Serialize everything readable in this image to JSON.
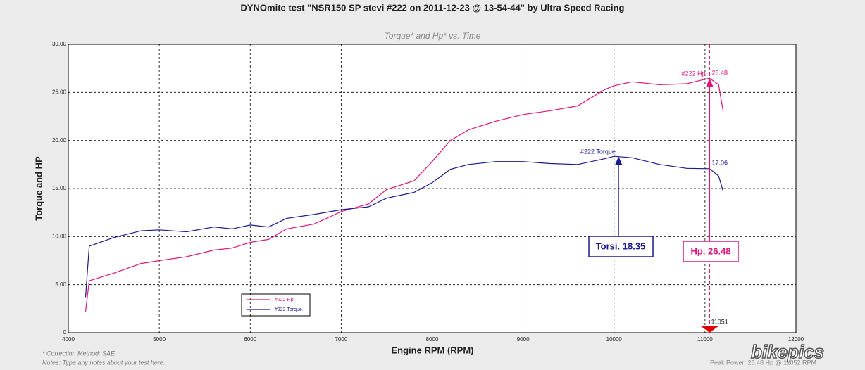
{
  "chart_data": {
    "type": "line",
    "title": "DYNOmite test \"NSR150 SP stevi #222 on 2011-12-23 @ 13-54-44\" by Ultra Speed Racing",
    "subtitle": "Torque* and Hp* vs. Time",
    "x_label": "Engine RPM (RPM)",
    "y_label": "Torque and HP",
    "xlim": [
      4000,
      12000
    ],
    "xticks": [
      4000,
      5000,
      6000,
      7000,
      8000,
      9000,
      10000,
      11000,
      12000
    ],
    "ylim": [
      0,
      30
    ],
    "yticks": [
      {
        "value": 0,
        "label": "0"
      },
      {
        "value": 5,
        "label": "5.00"
      },
      {
        "value": 10,
        "label": "10.00"
      },
      {
        "value": 15,
        "label": "15.00"
      },
      {
        "value": 20,
        "label": "20.00"
      },
      {
        "value": 25,
        "label": "25.00"
      },
      {
        "value": 30,
        "label": "30.00"
      }
    ],
    "grid": true,
    "x": [
      4190,
      4230,
      4500,
      4800,
      5000,
      5300,
      5600,
      5800,
      6000,
      6200,
      6400,
      6700,
      7000,
      7300,
      7500,
      7800,
      8000,
      8200,
      8400,
      8700,
      9000,
      9300,
      9600,
      9900,
      10000,
      10200,
      10500,
      10800,
      11050,
      11150,
      11200
    ],
    "series": [
      {
        "name": "#222 Hp",
        "color": "#e0157a",
        "values": [
          2.2,
          5.4,
          6.2,
          7.2,
          7.5,
          7.9,
          8.6,
          8.8,
          9.4,
          9.7,
          10.8,
          11.3,
          12.6,
          13.4,
          14.9,
          15.8,
          17.8,
          20.0,
          21.1,
          22.0,
          22.7,
          23.1,
          23.6,
          25.3,
          25.7,
          26.1,
          25.8,
          25.9,
          26.48,
          25.8,
          23.0
        ]
      },
      {
        "name": "#222 Torque",
        "color": "#1a1a8c",
        "values": [
          3.7,
          9.0,
          9.9,
          10.6,
          10.7,
          10.5,
          11.0,
          10.8,
          11.2,
          11.0,
          11.9,
          12.3,
          12.8,
          13.1,
          14.0,
          14.6,
          15.6,
          17.0,
          17.5,
          17.8,
          17.8,
          17.6,
          17.5,
          18.1,
          18.35,
          18.2,
          17.5,
          17.1,
          17.06,
          16.3,
          14.7
        ]
      }
    ],
    "annotations": {
      "hp_tag": "#222 Hp",
      "hp_peak": 26.48,
      "torque_tag": "#222 Torque",
      "torque_end": 17.06,
      "torque_box": {
        "value": 18.35,
        "label": "Torsi. 18.35"
      },
      "hp_box": {
        "value": 26.48,
        "label": "Hp. 26.48"
      },
      "cursor_rpm": 11051
    },
    "notes": [
      "* Correction Method: SAE",
      "Notes: Type any notes about your test here."
    ],
    "peak_note": "Peak Power: 26.48 Hp @ 11052 RPM",
    "watermark": "bikepics"
  }
}
